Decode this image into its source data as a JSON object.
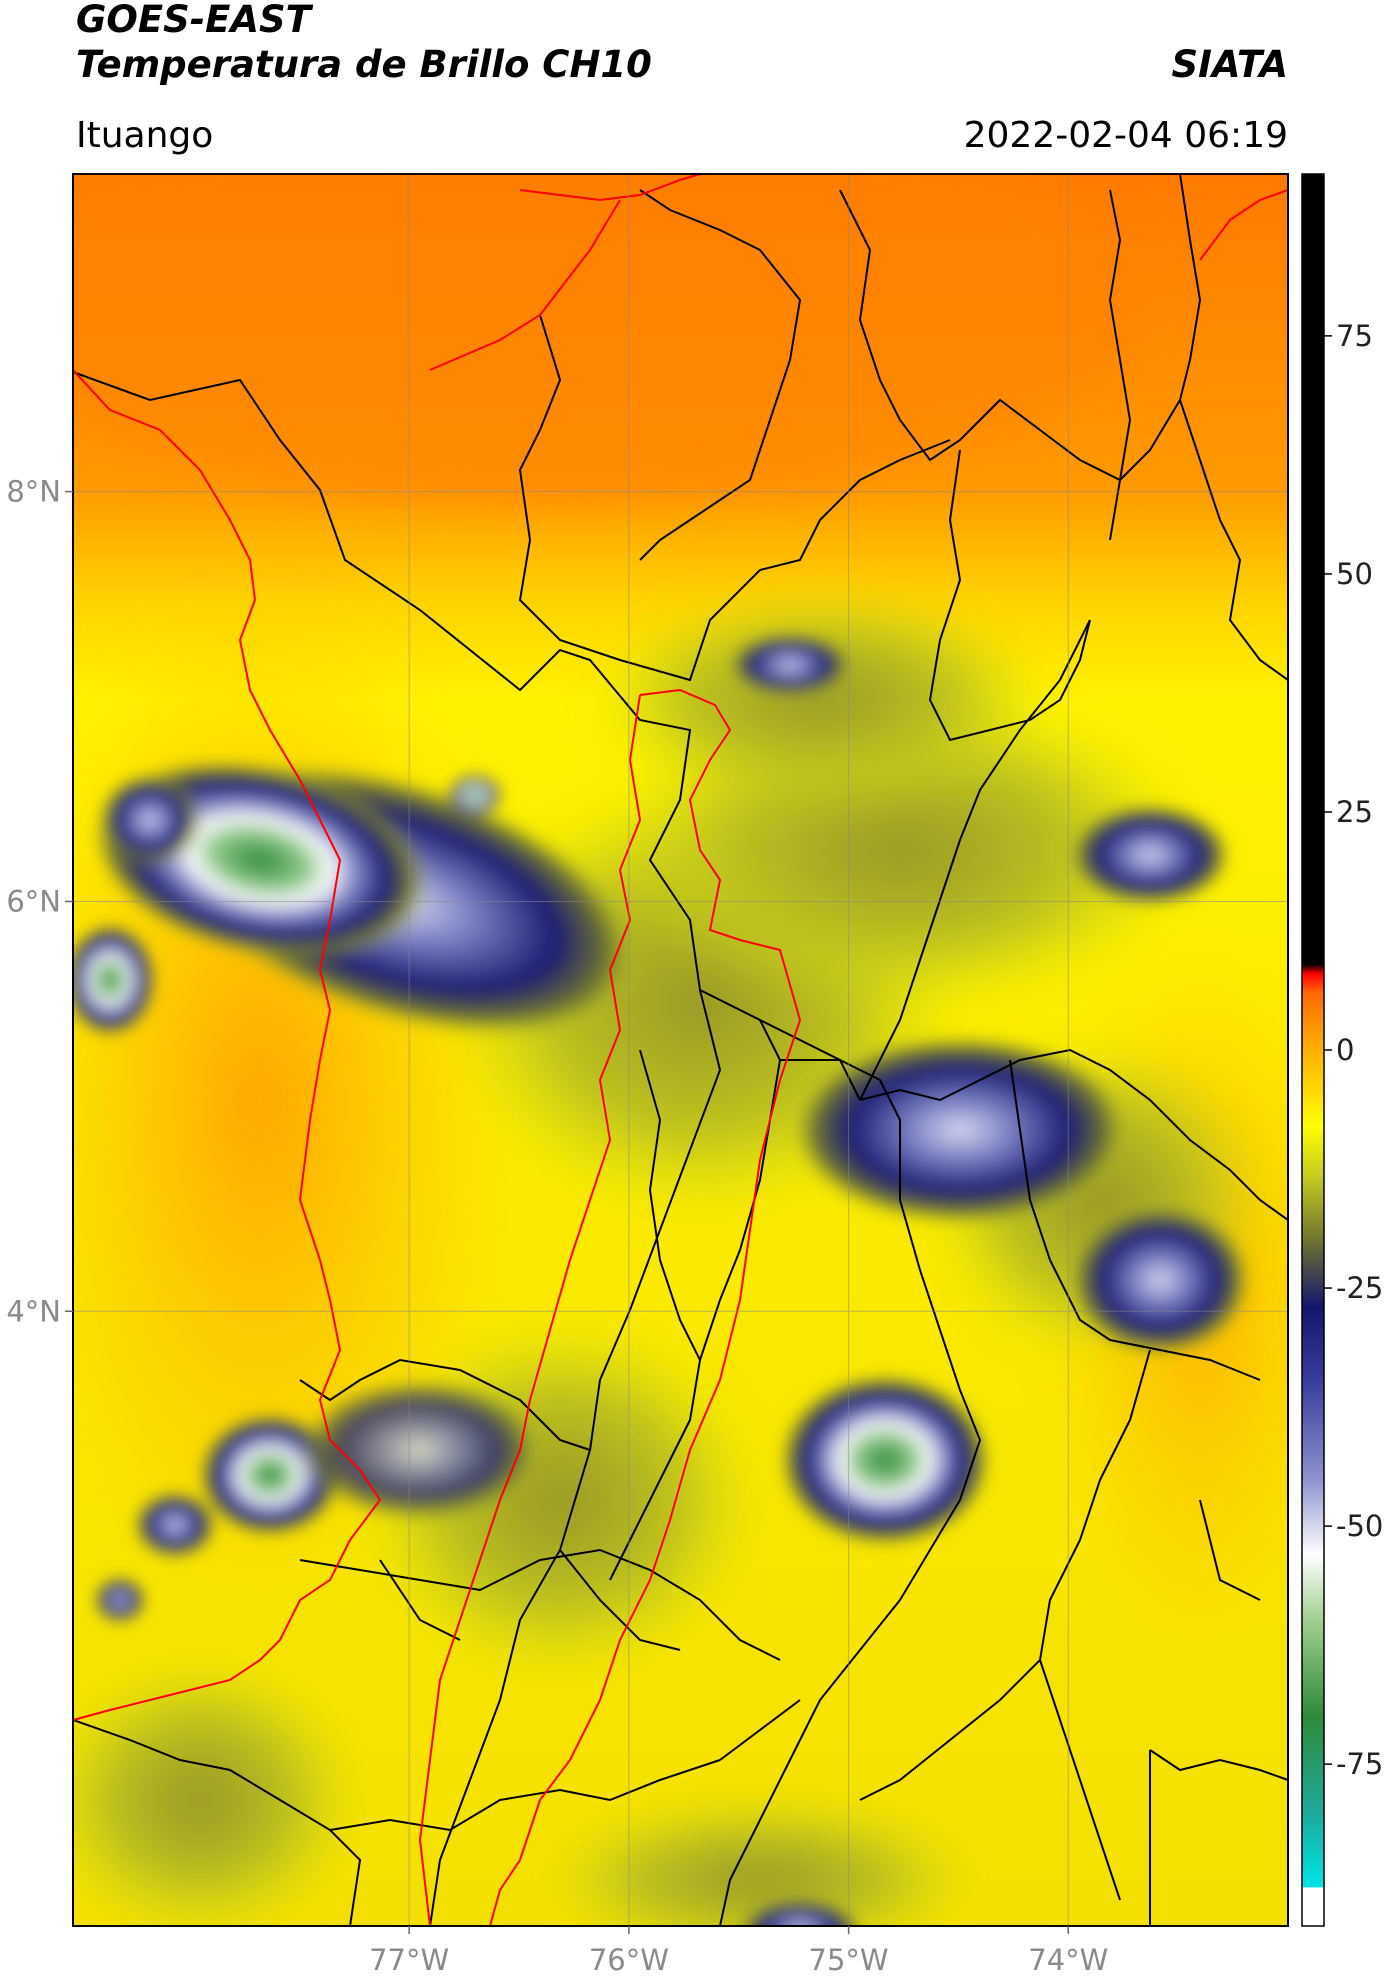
{
  "header": {
    "title_line1": "GOES-EAST",
    "title_line2": "Temperatura de Brillo CH10",
    "source": "SIATA",
    "region": "Ituango",
    "datetime": "2022-02-04 06:19"
  },
  "map": {
    "extent_lon": [
      -78.53,
      -73.0
    ],
    "extent_lat": [
      1.0,
      9.55
    ],
    "lon_ticks": [
      {
        "value": -77,
        "label": "77°W"
      },
      {
        "value": -76,
        "label": "76°W"
      },
      {
        "value": -75,
        "label": "75°W"
      },
      {
        "value": -74,
        "label": "74°W"
      }
    ],
    "lat_ticks": [
      {
        "value": 8,
        "label": "8°N"
      },
      {
        "value": 6,
        "label": "6°N"
      },
      {
        "value": 4,
        "label": "4°N"
      }
    ],
    "gridlines": true
  },
  "colorbar": {
    "range": [
      -92,
      92
    ],
    "ticks": [
      {
        "value": 75,
        "label": "75"
      },
      {
        "value": 50,
        "label": "50"
      },
      {
        "value": 25,
        "label": "25"
      },
      {
        "value": 0,
        "label": "0"
      },
      {
        "value": -25,
        "label": "-25"
      },
      {
        "value": -50,
        "label": "-50"
      },
      {
        "value": -75,
        "label": "-75"
      }
    ],
    "stops": [
      {
        "v": -92,
        "c": "#ffffff"
      },
      {
        "v": -88,
        "c": "#ffffff"
      },
      {
        "v": -87.9,
        "c": "#00e5e5"
      },
      {
        "v": -80,
        "c": "#1fa89a"
      },
      {
        "v": -70,
        "c": "#2e8a3a"
      },
      {
        "v": -60,
        "c": "#9fcf8f"
      },
      {
        "v": -53,
        "c": "#ffffff"
      },
      {
        "v": -45,
        "c": "#8c92cf"
      },
      {
        "v": -35,
        "c": "#3a3f9c"
      },
      {
        "v": -27,
        "c": "#14166e"
      },
      {
        "v": -20,
        "c": "#6f7330"
      },
      {
        "v": -13,
        "c": "#c8cf20"
      },
      {
        "v": -8,
        "c": "#ffff00"
      },
      {
        "v": 0,
        "c": "#ffb000"
      },
      {
        "v": 6,
        "c": "#ff6a00"
      },
      {
        "v": 8,
        "c": "#ff0000"
      },
      {
        "v": 9,
        "c": "#000000"
      },
      {
        "v": 92,
        "c": "#000000"
      }
    ]
  },
  "colors": {
    "political_boundaries": "#000000",
    "highlight_boundaries": "#ff0000"
  }
}
